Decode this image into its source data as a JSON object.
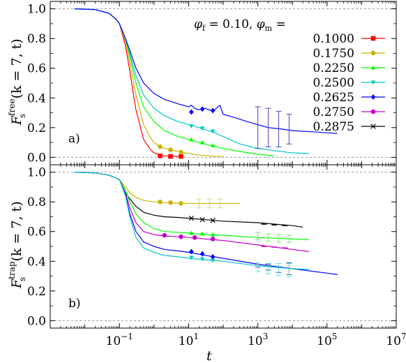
{
  "chart_data": [
    {
      "type": "line",
      "panel_label": "a)",
      "ylabel_main": "F",
      "ylabel_sub": "s",
      "ylabel_sup": "free",
      "ylabel_args": "(k = 7, t)",
      "xscale": "log",
      "xlim": [
        0.001,
        10000000
      ],
      "ylim": [
        -0.05,
        1.05
      ],
      "yticks": [
        0.0,
        0.2,
        0.4,
        0.6,
        0.8,
        1.0
      ],
      "ytick_labels": [
        "0.0",
        "0.2",
        "0.4",
        "0.6",
        "0.8",
        "1.0"
      ],
      "reference_lines": [
        0.0,
        1.0
      ],
      "legend_title_f": "φ",
      "legend_title_f_sub": "f",
      "legend_title_f_val": " = 0.10, ",
      "legend_title_m": "φ",
      "legend_title_m_sub": "m",
      "legend_title_m_val": " = ",
      "legend_placement": "top-right",
      "series": [
        {
          "name": "0.1000",
          "color": "#ff0000",
          "marker": "square",
          "x": [
            0.005,
            0.02,
            0.05,
            0.08,
            0.1,
            0.15,
            0.2,
            0.3,
            0.5,
            0.8,
            1.0,
            1.5,
            2,
            3,
            5,
            7
          ],
          "y": [
            1.0,
            0.995,
            0.97,
            0.93,
            0.9,
            0.75,
            0.58,
            0.32,
            0.12,
            0.05,
            0.03,
            0.015,
            0.01,
            0.008,
            0.006,
            0.005
          ],
          "mx": [
            1.5,
            3,
            6
          ],
          "my": [
            0.01,
            0.006,
            0.006
          ]
        },
        {
          "name": "0.1750",
          "color": "#c8b400",
          "marker": "circle",
          "x": [
            0.005,
            0.02,
            0.05,
            0.08,
            0.1,
            0.15,
            0.2,
            0.3,
            0.5,
            0.8,
            1.0,
            1.5,
            3,
            6,
            10,
            20,
            50,
            100
          ],
          "y": [
            1.0,
            0.995,
            0.97,
            0.93,
            0.9,
            0.78,
            0.64,
            0.42,
            0.22,
            0.13,
            0.1,
            0.07,
            0.05,
            0.035,
            0.025,
            0.015,
            0.008,
            0.005
          ],
          "mx": [
            1.5,
            3,
            6
          ],
          "my": [
            0.072,
            0.05,
            0.035
          ]
        },
        {
          "name": "0.2250",
          "color": "#00ff00",
          "marker": "triangle-up",
          "x": [
            0.005,
            0.02,
            0.05,
            0.08,
            0.1,
            0.15,
            0.2,
            0.3,
            0.5,
            1,
            2,
            5,
            10,
            20,
            50,
            100,
            300,
            1000,
            3000
          ],
          "y": [
            1.0,
            0.995,
            0.97,
            0.93,
            0.9,
            0.8,
            0.68,
            0.5,
            0.34,
            0.24,
            0.18,
            0.14,
            0.12,
            0.1,
            0.075,
            0.06,
            0.04,
            0.02,
            0.01
          ],
          "mx": [
            12,
            25,
            50
          ],
          "my": [
            0.12,
            0.1,
            0.08
          ]
        },
        {
          "name": "0.2500",
          "color": "#00c8c8",
          "marker": "triangle-down",
          "x": [
            0.005,
            0.02,
            0.05,
            0.08,
            0.1,
            0.15,
            0.2,
            0.3,
            0.5,
            1,
            2,
            5,
            10,
            20,
            50,
            100,
            300,
            1000,
            3000,
            10000,
            30000
          ],
          "y": [
            1.0,
            0.995,
            0.97,
            0.93,
            0.9,
            0.8,
            0.7,
            0.55,
            0.42,
            0.33,
            0.28,
            0.24,
            0.22,
            0.2,
            0.17,
            0.14,
            0.09,
            0.06,
            0.045,
            0.03,
            0.025
          ],
          "mx": [
            12,
            25,
            50
          ],
          "my": [
            0.21,
            0.195,
            0.175
          ]
        },
        {
          "name": "0.2625",
          "color": "#0000ff",
          "marker": "diamond",
          "x": [
            0.005,
            0.02,
            0.05,
            0.08,
            0.1,
            0.15,
            0.2,
            0.3,
            0.5,
            1,
            2,
            5,
            10,
            12,
            15,
            20,
            30,
            50,
            80,
            100,
            200,
            500,
            1000,
            2000,
            5000,
            10000,
            50000,
            200000
          ],
          "y": [
            1.0,
            0.995,
            0.97,
            0.93,
            0.9,
            0.8,
            0.72,
            0.6,
            0.5,
            0.43,
            0.39,
            0.36,
            0.34,
            0.35,
            0.33,
            0.32,
            0.33,
            0.31,
            0.35,
            0.29,
            0.27,
            0.24,
            0.22,
            0.2,
            0.19,
            0.18,
            0.17,
            0.16
          ],
          "mx": [
            12,
            25,
            50
          ],
          "my": [
            0.305,
            0.325,
            0.315
          ]
        },
        {
          "name": "0.2750",
          "color": "#c800c8",
          "marker": "circle",
          "x": [],
          "y": [],
          "mx": [],
          "my": []
        },
        {
          "name": "0.2875",
          "color": "#000000",
          "marker": "x",
          "x": [],
          "y": [],
          "mx": [],
          "my": []
        }
      ],
      "errorbars": [
        {
          "color": "#4848c8",
          "x": [
            1000,
            2000,
            4000,
            8000
          ],
          "y": [
            0.2,
            0.2,
            0.19,
            0.19
          ],
          "err": [
            0.14,
            0.13,
            0.12,
            0.1
          ]
        }
      ]
    },
    {
      "type": "line",
      "panel_label": "b)",
      "ylabel_main": "F",
      "ylabel_sub": "s",
      "ylabel_sup": "trap",
      "ylabel_args": "(k = 7, t)",
      "xscale": "log",
      "xlim": [
        0.001,
        10000000
      ],
      "ylim": [
        -0.05,
        1.05
      ],
      "xlabel": "t",
      "xticks": [
        0.1,
        10,
        1000,
        100000,
        10000000
      ],
      "xtick_base": "10",
      "xtick_exps": [
        "−1",
        "1",
        "3",
        "5",
        "7"
      ],
      "yticks": [
        0.0,
        0.2,
        0.4,
        0.6,
        0.8,
        1.0
      ],
      "ytick_labels": [
        "0.0",
        "0.2",
        "0.4",
        "0.6",
        "0.8",
        "1.0"
      ],
      "reference_lines": [
        0.0,
        1.0
      ],
      "series": [
        {
          "name": "0.1750",
          "color": "#c8b400",
          "marker": "circle",
          "x": [
            0.005,
            0.02,
            0.05,
            0.08,
            0.1,
            0.15,
            0.2,
            0.3,
            0.5,
            1,
            2,
            5,
            10,
            30,
            100,
            300
          ],
          "y": [
            1.0,
            0.995,
            0.98,
            0.96,
            0.95,
            0.9,
            0.86,
            0.83,
            0.81,
            0.8,
            0.795,
            0.79,
            0.79,
            0.79,
            0.79,
            0.79
          ],
          "mx": [
            1.5,
            3,
            6
          ],
          "my": [
            0.8,
            0.795,
            0.79
          ]
        },
        {
          "name": "0.2875",
          "color": "#000000",
          "marker": "x",
          "x": [
            0.15,
            0.2,
            0.3,
            0.5,
            1,
            2,
            5,
            10,
            30,
            100,
            1000,
            10000,
            20000
          ],
          "y": [
            0.86,
            0.82,
            0.77,
            0.73,
            0.71,
            0.7,
            0.695,
            0.69,
            0.68,
            0.67,
            0.66,
            0.64,
            0.63
          ],
          "mx": [
            12,
            25,
            50
          ],
          "my": [
            0.69,
            0.68,
            0.675
          ]
        },
        {
          "name": "0.2250",
          "color": "#00ff00",
          "marker": "triangle-up",
          "x": [
            0.005,
            0.02,
            0.05,
            0.08,
            0.1,
            0.15,
            0.2,
            0.3,
            0.5,
            1,
            2,
            5,
            10,
            30,
            100,
            1000,
            10000,
            30000
          ],
          "y": [
            1.0,
            0.995,
            0.98,
            0.96,
            0.95,
            0.88,
            0.8,
            0.72,
            0.66,
            0.62,
            0.6,
            0.595,
            0.59,
            0.58,
            0.575,
            0.56,
            0.55,
            0.545
          ],
          "mx": [
            12,
            25,
            50
          ],
          "my": [
            0.59,
            0.585,
            0.58
          ]
        },
        {
          "name": "0.2750",
          "color": "#c800c8",
          "marker": "circle",
          "x": [
            0.005,
            0.02,
            0.05,
            0.08,
            0.1,
            0.15,
            0.2,
            0.3,
            0.5,
            1,
            2,
            5,
            10,
            30,
            100,
            1000,
            10000,
            30000
          ],
          "y": [
            1.0,
            0.995,
            0.98,
            0.96,
            0.95,
            0.86,
            0.76,
            0.66,
            0.6,
            0.58,
            0.57,
            0.565,
            0.56,
            0.55,
            0.54,
            0.51,
            0.48,
            0.465
          ],
          "mx": [
            2,
            6,
            15,
            50
          ],
          "my": [
            0.575,
            0.565,
            0.56,
            0.55
          ]
        },
        {
          "name": "0.2625",
          "color": "#0000ff",
          "marker": "diamond",
          "x": [
            0.005,
            0.02,
            0.05,
            0.08,
            0.1,
            0.15,
            0.2,
            0.3,
            0.5,
            1,
            2,
            5,
            10,
            30,
            100,
            1000,
            10000,
            100000,
            200000
          ],
          "y": [
            1.0,
            0.995,
            0.98,
            0.96,
            0.95,
            0.85,
            0.72,
            0.6,
            0.53,
            0.5,
            0.48,
            0.47,
            0.46,
            0.44,
            0.42,
            0.38,
            0.35,
            0.32,
            0.31
          ],
          "mx": [
            12,
            25,
            50
          ],
          "my": [
            0.465,
            0.45,
            0.43
          ]
        },
        {
          "name": "0.2500",
          "color": "#00c8c8",
          "marker": "triangle-down",
          "x": [
            0.005,
            0.02,
            0.05,
            0.08,
            0.1,
            0.15,
            0.2,
            0.3,
            0.5,
            1,
            2,
            5,
            10,
            30,
            100,
            1000,
            10000,
            30000
          ],
          "y": [
            1.0,
            0.995,
            0.98,
            0.96,
            0.95,
            0.84,
            0.7,
            0.56,
            0.49,
            0.46,
            0.44,
            0.43,
            0.42,
            0.41,
            0.4,
            0.37,
            0.35,
            0.345
          ],
          "mx": [
            12,
            25,
            50
          ],
          "my": [
            0.425,
            0.415,
            0.405
          ]
        }
      ],
      "errorbars": [
        {
          "color": "#dcd480",
          "x": [
            20,
            40,
            80
          ],
          "y": [
            0.79,
            0.79,
            0.79
          ],
          "err": [
            0.03,
            0.03,
            0.03
          ]
        },
        {
          "color": "#80e880",
          "x": [
            1000,
            2000,
            4000,
            8000
          ],
          "y": [
            0.57,
            0.56,
            0.555,
            0.55
          ],
          "err": [
            0.025,
            0.025,
            0.025,
            0.025
          ]
        },
        {
          "color": "#4848a0",
          "x": [
            1000,
            2000,
            4000,
            8000
          ],
          "y": [
            0.37,
            0.36,
            0.355,
            0.35
          ],
          "err": [
            0.01,
            0.02,
            0.03,
            0.04
          ]
        },
        {
          "color": "#60e0e0",
          "x": [
            1000,
            2000,
            4000,
            8000
          ],
          "y": [
            0.36,
            0.35,
            0.345,
            0.34
          ],
          "err": [
            0.03,
            0.035,
            0.04,
            0.045
          ]
        }
      ],
      "small_markers": [
        {
          "color": "#000000",
          "x": [
            1500,
            3000,
            6000
          ],
          "y": [
            0.65,
            0.645,
            0.64
          ]
        },
        {
          "color": "#c800c8",
          "x": [
            1500,
            3000,
            6000
          ],
          "y": [
            0.5,
            0.495,
            0.49
          ]
        }
      ]
    }
  ]
}
